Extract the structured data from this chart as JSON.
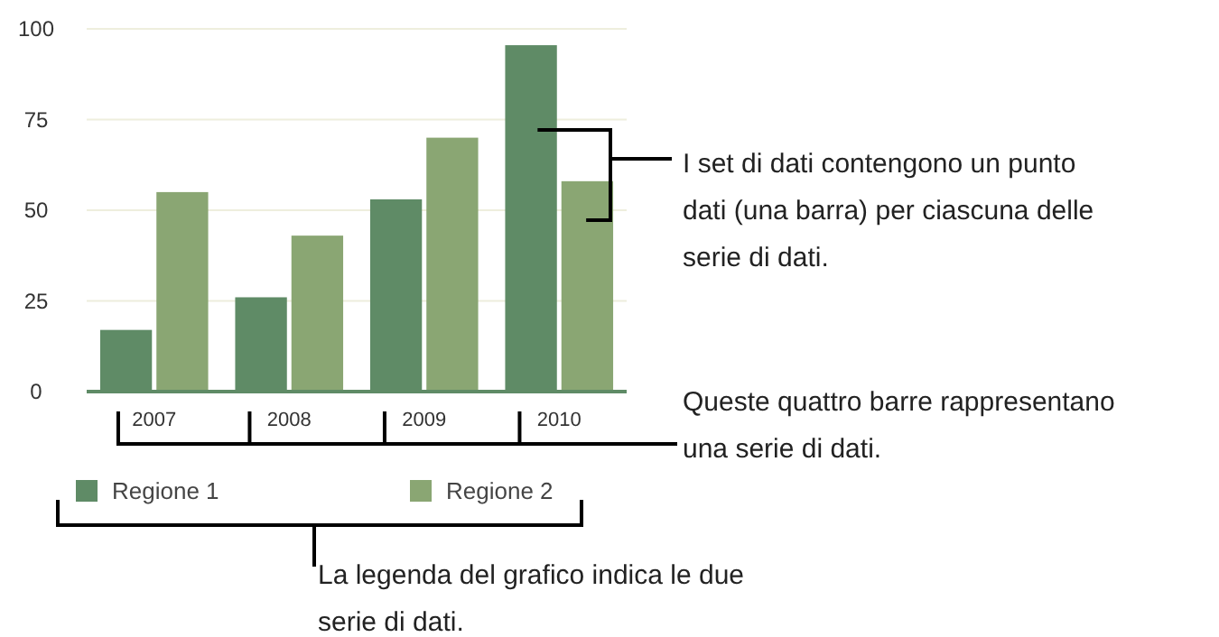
{
  "chart_data": {
    "type": "bar",
    "categories": [
      "2007",
      "2008",
      "2009",
      "2010"
    ],
    "series": [
      {
        "name": "Regione 1",
        "color": "#5f8b66",
        "values": [
          17,
          26,
          53,
          95.5
        ]
      },
      {
        "name": "Regione 2",
        "color": "#8aa673",
        "values": [
          55,
          43,
          70,
          58
        ]
      }
    ],
    "ylim": [
      0,
      100
    ],
    "yticks": [
      0,
      25,
      50,
      75,
      100
    ],
    "grid": "y",
    "legend": "bottom left",
    "annotations": [
      "I set di dati contengono un punto dati (una barra) per ciascuna delle serie di dati.",
      "Queste quattro barre rappresentano una serie di dati.",
      "La legenda del grafico indica le due serie di dati."
    ]
  }
}
